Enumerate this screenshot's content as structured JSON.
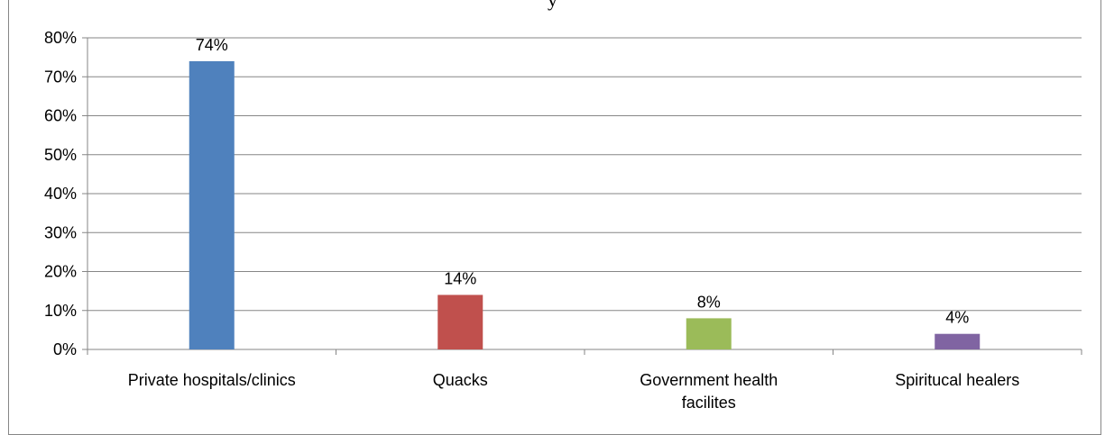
{
  "chart_data": {
    "type": "bar",
    "title": "y",
    "categories": [
      "Private hospitals/clinics",
      "Quacks",
      "Government  health facilites",
      "Spiritucal healers"
    ],
    "category_lines": [
      [
        "Private hospitals/clinics"
      ],
      [
        "Quacks"
      ],
      [
        "Government  health",
        "facilites"
      ],
      [
        "Spiritucal healers"
      ]
    ],
    "values": [
      0.74,
      0.14,
      0.08,
      0.04
    ],
    "data_labels": [
      "74%",
      "14%",
      "8%",
      "4%"
    ],
    "colors": [
      "#4f81bd",
      "#c0504d",
      "#9bbb59",
      "#8064a2"
    ],
    "y_ticks": [
      "0%",
      "10%",
      "20%",
      "30%",
      "40%",
      "50%",
      "60%",
      "70%",
      "80%"
    ],
    "ylim": [
      0,
      0.8
    ],
    "xlabel": "",
    "ylabel": "",
    "grid": true,
    "legend": "none"
  }
}
